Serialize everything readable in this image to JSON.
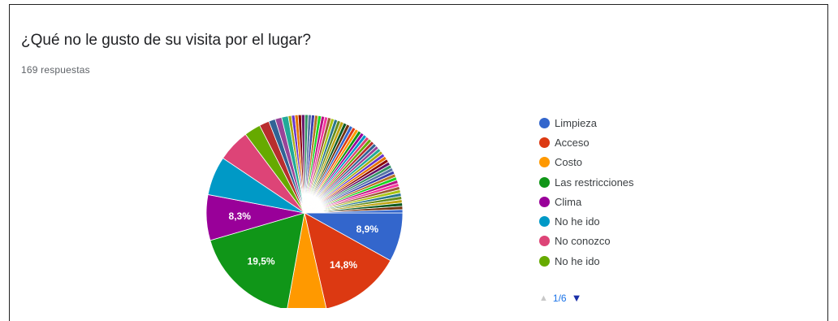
{
  "header": {
    "title": "¿Qué no le gusto de su visita por el lugar?",
    "responses": "169 respuestas"
  },
  "pager": {
    "page": "1/6"
  },
  "colors": {
    "up_arrow": "#c8c8c8",
    "down_arrow": "#1a2fa8"
  },
  "chart_data": {
    "type": "pie",
    "start": "3 o'clock, clockwise",
    "slices": [
      {
        "label": "Limpieza",
        "value": 8.9,
        "color": "#3366cc",
        "shown": "8,9%"
      },
      {
        "label": "Acceso",
        "value": 14.8,
        "color": "#dc3912",
        "shown": "14,8%"
      },
      {
        "label": "Costo",
        "value": 7.1,
        "color": "#ff9900",
        "shown": ""
      },
      {
        "label": "Las restricciones",
        "value": 19.5,
        "color": "#109618",
        "shown": "19,5%"
      },
      {
        "label": "Clima",
        "value": 8.3,
        "color": "#990099",
        "shown": "8,3%"
      },
      {
        "label": "No he ido",
        "value": 7.1,
        "color": "#0099c6",
        "shown": ""
      },
      {
        "label": "No conozco",
        "value": 5.9,
        "color": "#dd4477",
        "shown": ""
      },
      {
        "label": "No he ido",
        "value": 3.0,
        "color": "#66aa00",
        "shown": ""
      },
      {
        "value": 1.8,
        "color": "#b82e2e"
      },
      {
        "value": 1.2,
        "color": "#316395"
      },
      {
        "value": 1.2,
        "color": "#994499"
      },
      {
        "value": 1.2,
        "color": "#22aa99"
      },
      {
        "value": 0.6,
        "color": "#aaaa11"
      },
      {
        "value": 0.6,
        "color": "#6633cc"
      },
      {
        "value": 0.6,
        "color": "#e67300"
      },
      {
        "value": 0.6,
        "color": "#8b0707"
      },
      {
        "value": 0.6,
        "color": "#651067"
      },
      {
        "value": 0.6,
        "color": "#329262"
      },
      {
        "value": 0.6,
        "color": "#5574a6"
      },
      {
        "value": 0.6,
        "color": "#3b3eac"
      },
      {
        "value": 0.6,
        "color": "#b77322"
      },
      {
        "value": 0.6,
        "color": "#16d620"
      },
      {
        "value": 0.6,
        "color": "#b91383"
      },
      {
        "value": 0.6,
        "color": "#f4359e"
      },
      {
        "value": 0.6,
        "color": "#9c5935"
      },
      {
        "value": 0.6,
        "color": "#a9c413"
      },
      {
        "value": 0.6,
        "color": "#2a778d"
      },
      {
        "value": 0.6,
        "color": "#668d1c"
      },
      {
        "value": 0.6,
        "color": "#bea413"
      },
      {
        "value": 0.6,
        "color": "#0c5922"
      },
      {
        "value": 0.6,
        "color": "#743411"
      },
      {
        "value": 0.6,
        "color": "#3366cc"
      },
      {
        "value": 0.6,
        "color": "#dc3912"
      },
      {
        "value": 0.6,
        "color": "#ff9900"
      },
      {
        "value": 0.6,
        "color": "#109618"
      },
      {
        "value": 0.6,
        "color": "#990099"
      },
      {
        "value": 0.6,
        "color": "#0099c6"
      },
      {
        "value": 0.6,
        "color": "#dd4477"
      },
      {
        "value": 0.6,
        "color": "#66aa00"
      },
      {
        "value": 0.6,
        "color": "#b82e2e"
      },
      {
        "value": 0.6,
        "color": "#316395"
      },
      {
        "value": 0.6,
        "color": "#994499"
      },
      {
        "value": 0.6,
        "color": "#22aa99"
      },
      {
        "value": 0.6,
        "color": "#aaaa11"
      },
      {
        "value": 0.6,
        "color": "#6633cc"
      },
      {
        "value": 0.6,
        "color": "#e67300"
      },
      {
        "value": 0.6,
        "color": "#8b0707"
      },
      {
        "value": 0.6,
        "color": "#651067"
      },
      {
        "value": 0.6,
        "color": "#329262"
      },
      {
        "value": 0.6,
        "color": "#5574a6"
      },
      {
        "value": 0.6,
        "color": "#3b3eac"
      },
      {
        "value": 0.6,
        "color": "#b77322"
      },
      {
        "value": 0.6,
        "color": "#16d620"
      },
      {
        "value": 0.6,
        "color": "#b91383"
      },
      {
        "value": 0.6,
        "color": "#f4359e"
      },
      {
        "value": 0.6,
        "color": "#9c5935"
      },
      {
        "value": 0.6,
        "color": "#a9c413"
      },
      {
        "value": 0.6,
        "color": "#2a778d"
      },
      {
        "value": 0.6,
        "color": "#668d1c"
      },
      {
        "value": 0.6,
        "color": "#bea413"
      },
      {
        "value": 0.6,
        "color": "#0c5922"
      },
      {
        "value": 0.6,
        "color": "#743411"
      },
      {
        "value": 0.6,
        "color": "#3366cc"
      }
    ]
  }
}
